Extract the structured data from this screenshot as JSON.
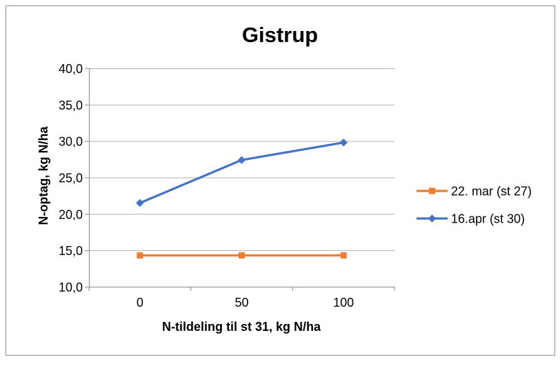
{
  "chart_data": {
    "type": "line",
    "title": "Gistrup",
    "xlabel": "N-tildeling til st 31, kg N/ha",
    "ylabel": "N-optag, kg N/ha",
    "categories": [
      0,
      50,
      100
    ],
    "x_tick_labels": [
      "0",
      "50",
      "100"
    ],
    "y_tick_labels": [
      "40,0",
      "35,0",
      "30,0",
      "25,0",
      "20,0",
      "15,0",
      "10,0"
    ],
    "ylim": [
      10,
      40
    ],
    "y_step": 5,
    "grid": "horizontal-only",
    "legend_position": "right-center",
    "series": [
      {
        "name": "22. mar (st 27)",
        "color": "#ED7D31",
        "marker": "square",
        "values": [
          14.3,
          14.3,
          14.3
        ]
      },
      {
        "name": "16.apr (st 30)",
        "color": "#4472C4",
        "marker": "diamond",
        "values": [
          21.5,
          27.4,
          29.8
        ]
      }
    ]
  },
  "colors": {
    "background": "#ffffff",
    "chart_border": "#8c8c8c",
    "gridline": "#b0b0b0",
    "axis_line": "#9a9a9a",
    "text": "#000000"
  }
}
